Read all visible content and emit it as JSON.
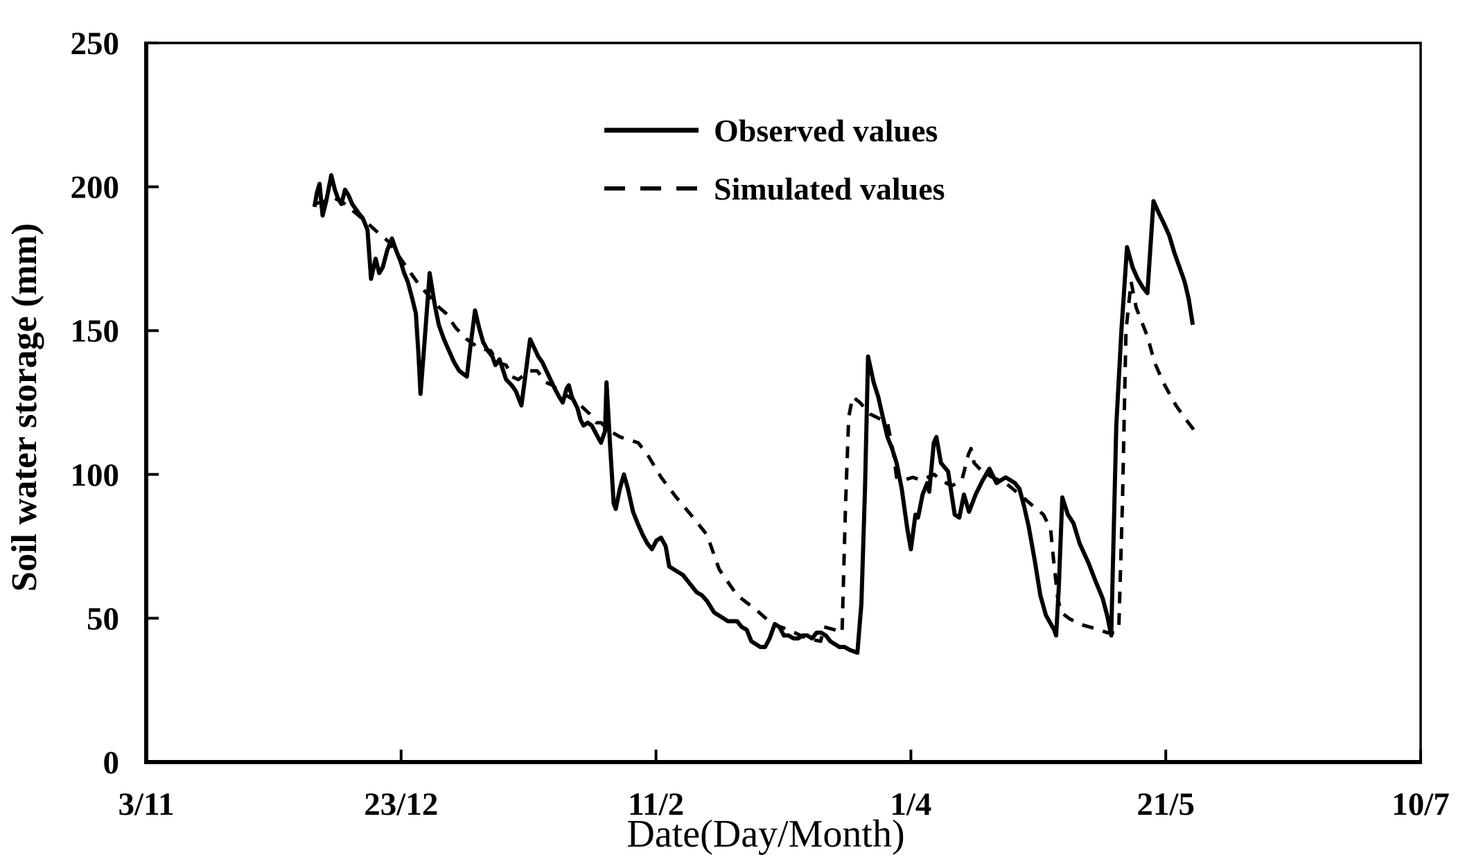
{
  "figure": {
    "background": "#ffffff",
    "ink": "#000000"
  },
  "legend": {
    "position": "upper-center-inside",
    "items": [
      {
        "label": "Observed values",
        "line_style": "solid"
      },
      {
        "label": "Simulated values",
        "line_style": "dashed"
      }
    ]
  },
  "chart_data": {
    "type": "line",
    "title": "",
    "xlabel": "Date(Day/Month)",
    "ylabel": "Soil water storage (mm)",
    "grid": false,
    "x_axis": {
      "unit": "days since 3/11",
      "domain": [
        0,
        250
      ],
      "ticks": [
        {
          "day": 0,
          "label": "3/11"
        },
        {
          "day": 50,
          "label": "23/12"
        },
        {
          "day": 100,
          "label": "11/2"
        },
        {
          "day": 150,
          "label": "1/4"
        },
        {
          "day": 200,
          "label": "21/5"
        },
        {
          "day": 250,
          "label": "10/7"
        }
      ]
    },
    "y_axis": {
      "domain": [
        0,
        250
      ],
      "ticks": [
        0,
        50,
        100,
        150,
        200,
        250
      ]
    },
    "series": [
      {
        "name": "Observed values",
        "line": "solid",
        "points": [
          [
            33,
            193
          ],
          [
            33.5,
            198
          ],
          [
            34,
            201
          ],
          [
            34.6,
            190
          ],
          [
            35.3,
            195
          ],
          [
            36.3,
            204
          ],
          [
            37,
            199
          ],
          [
            37.6,
            196
          ],
          [
            38.3,
            194
          ],
          [
            39,
            199
          ],
          [
            39.7,
            197
          ],
          [
            40.4,
            194
          ],
          [
            41.6,
            191
          ],
          [
            42.5,
            189
          ],
          [
            43.4,
            185
          ],
          [
            44.1,
            168
          ],
          [
            45,
            175
          ],
          [
            45.7,
            170
          ],
          [
            46.4,
            172
          ],
          [
            47.3,
            178
          ],
          [
            48.2,
            182
          ],
          [
            49,
            178
          ],
          [
            49.9,
            174
          ],
          [
            50.6,
            170
          ],
          [
            51.3,
            167
          ],
          [
            52.2,
            161
          ],
          [
            52.9,
            156
          ],
          [
            53.4,
            142
          ],
          [
            53.8,
            128
          ],
          [
            54.6,
            146
          ],
          [
            55.6,
            170
          ],
          [
            56.6,
            159
          ],
          [
            57.4,
            152
          ],
          [
            58.4,
            147
          ],
          [
            59.4,
            143
          ],
          [
            60.4,
            139
          ],
          [
            61.4,
            136
          ],
          [
            62.9,
            134
          ],
          [
            63.7,
            146
          ],
          [
            64.5,
            157
          ],
          [
            65.3,
            151
          ],
          [
            66.1,
            146
          ],
          [
            67,
            143
          ],
          [
            67.9,
            141
          ],
          [
            68.5,
            138
          ],
          [
            69.3,
            140
          ],
          [
            70.6,
            133
          ],
          [
            71.7,
            131
          ],
          [
            72.5,
            129
          ],
          [
            73.6,
            124
          ],
          [
            74.5,
            136
          ],
          [
            75.3,
            147
          ],
          [
            76.1,
            144
          ],
          [
            76.9,
            141
          ],
          [
            77.7,
            139
          ],
          [
            78.5,
            136
          ],
          [
            79.3,
            133
          ],
          [
            80.1,
            130
          ],
          [
            81,
            127
          ],
          [
            81.7,
            125
          ],
          [
            82.5,
            130
          ],
          [
            82.9,
            131
          ],
          [
            83.5,
            127
          ],
          [
            84.6,
            123
          ],
          [
            85.2,
            119
          ],
          [
            85.8,
            117
          ],
          [
            86.6,
            118
          ],
          [
            87.4,
            117
          ],
          [
            88.3,
            114
          ],
          [
            89.2,
            111
          ],
          [
            90,
            115
          ],
          [
            90.3,
            132
          ],
          [
            91,
            110
          ],
          [
            91.7,
            90
          ],
          [
            92.1,
            88
          ],
          [
            92.9,
            95
          ],
          [
            93.7,
            100
          ],
          [
            94.5,
            95
          ],
          [
            95.5,
            87
          ],
          [
            96.4,
            83
          ],
          [
            97.4,
            79
          ],
          [
            98.3,
            76
          ],
          [
            99.2,
            74
          ],
          [
            100.1,
            77
          ],
          [
            101,
            78
          ],
          [
            101.9,
            75
          ],
          [
            102.6,
            68
          ],
          [
            103.5,
            67
          ],
          [
            104.4,
            66
          ],
          [
            105.3,
            65
          ],
          [
            106.2,
            63
          ],
          [
            107.1,
            61
          ],
          [
            108,
            59
          ],
          [
            109,
            58
          ],
          [
            110,
            56
          ],
          [
            111.4,
            52
          ],
          [
            112.3,
            51
          ],
          [
            113.2,
            50
          ],
          [
            114.1,
            49
          ],
          [
            115,
            49
          ],
          [
            115.9,
            49
          ],
          [
            116.8,
            47
          ],
          [
            117.8,
            46
          ],
          [
            118.7,
            42
          ],
          [
            119.6,
            41
          ],
          [
            120.5,
            40
          ],
          [
            121.4,
            40
          ],
          [
            122.3,
            43
          ],
          [
            123.3,
            48
          ],
          [
            124.2,
            47
          ],
          [
            125.1,
            44
          ],
          [
            126,
            44
          ],
          [
            127,
            43
          ],
          [
            127.9,
            43
          ],
          [
            128.8,
            44
          ],
          [
            129.7,
            44
          ],
          [
            130.6,
            43
          ],
          [
            131.5,
            45
          ],
          [
            132.4,
            45
          ],
          [
            133.3,
            44
          ],
          [
            134.2,
            42
          ],
          [
            135.1,
            41
          ],
          [
            136,
            40
          ],
          [
            137,
            40
          ],
          [
            138,
            39
          ],
          [
            139.5,
            38
          ],
          [
            140.3,
            55
          ],
          [
            141,
            95
          ],
          [
            141.6,
            141
          ],
          [
            142.7,
            132
          ],
          [
            143.6,
            127
          ],
          [
            144.5,
            120
          ],
          [
            145.4,
            113
          ],
          [
            146.3,
            109
          ],
          [
            147.2,
            104
          ],
          [
            148.2,
            95
          ],
          [
            149.3,
            81
          ],
          [
            150,
            74
          ],
          [
            150.9,
            86
          ],
          [
            151.4,
            85
          ],
          [
            152.3,
            93
          ],
          [
            153.2,
            97
          ],
          [
            153.6,
            94
          ],
          [
            154.5,
            111
          ],
          [
            155,
            113
          ],
          [
            155.9,
            104
          ],
          [
            157.3,
            101
          ],
          [
            158.6,
            86
          ],
          [
            159.5,
            85
          ],
          [
            160.4,
            93
          ],
          [
            161.4,
            87
          ],
          [
            162.7,
            93
          ],
          [
            164.1,
            98
          ],
          [
            165.4,
            102
          ],
          [
            166.8,
            97
          ],
          [
            167.7,
            98
          ],
          [
            168.6,
            99
          ],
          [
            169.5,
            98
          ],
          [
            170.4,
            97
          ],
          [
            171.3,
            95
          ],
          [
            172.2,
            89
          ],
          [
            173.1,
            82
          ],
          [
            174.3,
            70
          ],
          [
            175.4,
            58
          ],
          [
            176.5,
            51
          ],
          [
            178.1,
            46
          ],
          [
            178.5,
            44
          ],
          [
            179,
            60
          ],
          [
            179.7,
            92
          ],
          [
            180.8,
            86
          ],
          [
            181.9,
            83
          ],
          [
            183.1,
            76
          ],
          [
            184.9,
            69
          ],
          [
            186.2,
            63
          ],
          [
            187.6,
            57
          ],
          [
            188.5,
            51
          ],
          [
            189.3,
            44
          ],
          [
            190.3,
            117
          ],
          [
            191.3,
            150
          ],
          [
            192.4,
            179
          ],
          [
            193.5,
            172
          ],
          [
            194.5,
            168
          ],
          [
            195.5,
            165
          ],
          [
            196.4,
            163
          ],
          [
            197.6,
            195
          ],
          [
            198.6,
            191
          ],
          [
            199.7,
            187
          ],
          [
            200.7,
            183
          ],
          [
            201.7,
            177
          ],
          [
            202.7,
            172
          ],
          [
            203.7,
            167
          ],
          [
            204.5,
            161
          ],
          [
            205.3,
            152
          ]
        ]
      },
      {
        "name": "Simulated values",
        "line": "dashed",
        "points": [
          [
            33,
            194
          ],
          [
            35,
            195
          ],
          [
            37,
            196
          ],
          [
            39,
            194
          ],
          [
            41,
            191
          ],
          [
            43,
            188
          ],
          [
            45.5,
            184
          ],
          [
            47.5,
            181
          ],
          [
            49.5,
            176
          ],
          [
            51.5,
            171
          ],
          [
            53.5,
            166
          ],
          [
            55.5,
            162
          ],
          [
            57.5,
            158
          ],
          [
            58.8,
            156
          ],
          [
            60.7,
            151
          ],
          [
            62.9,
            147
          ],
          [
            65.2,
            144
          ],
          [
            67.6,
            143
          ],
          [
            68.8,
            139
          ],
          [
            70.6,
            138
          ],
          [
            71.7,
            134
          ],
          [
            73,
            133
          ],
          [
            75.1,
            136
          ],
          [
            76.7,
            136
          ],
          [
            78.4,
            132
          ],
          [
            79.7,
            131
          ],
          [
            81,
            129
          ],
          [
            81.9,
            128
          ],
          [
            83.8,
            126
          ],
          [
            84.6,
            125
          ],
          [
            87,
            121
          ],
          [
            88.3,
            118
          ],
          [
            89.2,
            118
          ],
          [
            91,
            115
          ],
          [
            93,
            113
          ],
          [
            96.5,
            111
          ],
          [
            98.3,
            107
          ],
          [
            101,
            99
          ],
          [
            104,
            92
          ],
          [
            107.3,
            85
          ],
          [
            110,
            79
          ],
          [
            112.4,
            67
          ],
          [
            115.9,
            58
          ],
          [
            119.6,
            53
          ],
          [
            122.8,
            48
          ],
          [
            126,
            46
          ],
          [
            129.6,
            43
          ],
          [
            132.3,
            42
          ],
          [
            133,
            47
          ],
          [
            135,
            46
          ],
          [
            136.5,
            45
          ],
          [
            137.2,
            90
          ],
          [
            137.8,
            120
          ],
          [
            138.6,
            127
          ],
          [
            140,
            125
          ],
          [
            142,
            121
          ],
          [
            145.4,
            118
          ],
          [
            146.5,
            108
          ],
          [
            147.2,
            99
          ],
          [
            148.5,
            98
          ],
          [
            150.4,
            99
          ],
          [
            152,
            98
          ],
          [
            154.6,
            100
          ],
          [
            155.9,
            98
          ],
          [
            158,
            96
          ],
          [
            160,
            98
          ],
          [
            161.3,
            107
          ],
          [
            161.8,
            109
          ],
          [
            162.4,
            104
          ],
          [
            164,
            101
          ],
          [
            166,
            99
          ],
          [
            168.6,
            97
          ],
          [
            170,
            95
          ],
          [
            172,
            92
          ],
          [
            174,
            89
          ],
          [
            176,
            86
          ],
          [
            177.4,
            81
          ],
          [
            178,
            70
          ],
          [
            178.8,
            57
          ],
          [
            179.5,
            52
          ],
          [
            181,
            50
          ],
          [
            183,
            48
          ],
          [
            185,
            47
          ],
          [
            187,
            46
          ],
          [
            188.5,
            45
          ],
          [
            190,
            45
          ],
          [
            190.8,
            47
          ],
          [
            191.5,
            90
          ],
          [
            192.2,
            150
          ],
          [
            193.2,
            167
          ],
          [
            194.2,
            158
          ],
          [
            196.4,
            148
          ],
          [
            197.8,
            139
          ],
          [
            199.5,
            132
          ],
          [
            202,
            124
          ],
          [
            204,
            119
          ],
          [
            205.3,
            116
          ],
          [
            205.8,
            114
          ]
        ]
      }
    ]
  }
}
